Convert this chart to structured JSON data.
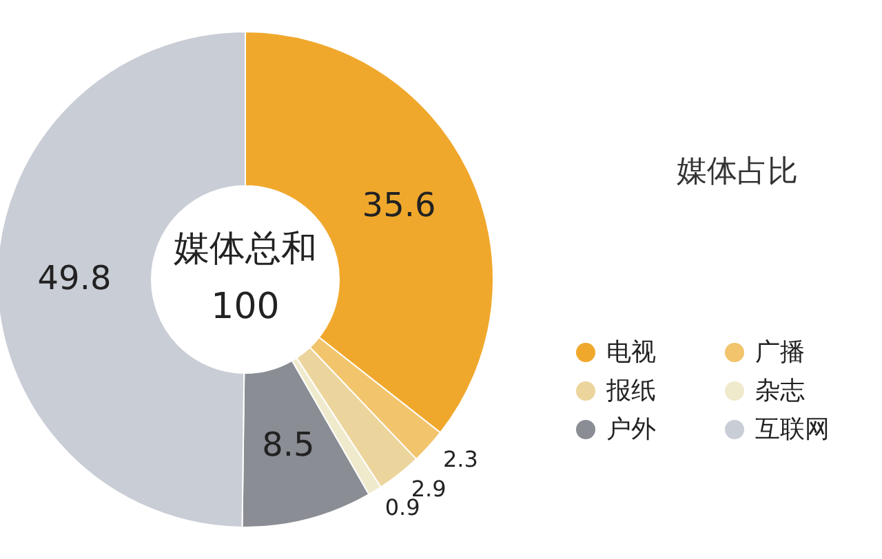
{
  "chart_data": {
    "type": "donut",
    "title": "媒体占比",
    "categories": [
      "电视",
      "广播",
      "报纸",
      "杂志",
      "户外",
      "互联网"
    ],
    "values": [
      35.6,
      2.3,
      2.9,
      0.9,
      8.5,
      49.8
    ],
    "colors": [
      "#f0a82c",
      "#f2c46c",
      "#ecd59c",
      "#efeacc",
      "#8b8d95",
      "#c9cdd5"
    ],
    "data_labels": true,
    "legend": "bottom right",
    "annotations": [
      "媒体总和",
      "100"
    ]
  }
}
